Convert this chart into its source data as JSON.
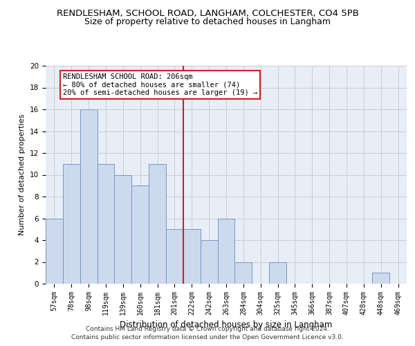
{
  "title": "RENDLESHAM, SCHOOL ROAD, LANGHAM, COLCHESTER, CO4 5PB",
  "subtitle": "Size of property relative to detached houses in Langham",
  "xlabel": "Distribution of detached houses by size in Langham",
  "ylabel": "Number of detached properties",
  "categories": [
    "57sqm",
    "78sqm",
    "98sqm",
    "119sqm",
    "139sqm",
    "160sqm",
    "181sqm",
    "201sqm",
    "222sqm",
    "242sqm",
    "263sqm",
    "284sqm",
    "304sqm",
    "325sqm",
    "345sqm",
    "366sqm",
    "387sqm",
    "407sqm",
    "428sqm",
    "448sqm",
    "469sqm"
  ],
  "values": [
    6,
    11,
    16,
    11,
    10,
    9,
    11,
    5,
    5,
    4,
    6,
    2,
    0,
    2,
    0,
    0,
    0,
    0,
    0,
    1,
    0
  ],
  "bar_color": "#cdd9ec",
  "bar_edge_color": "#7399c6",
  "vline_x_index": 7,
  "vline_color": "#cc2222",
  "annotation_line1": "RENDLESHAM SCHOOL ROAD: 206sqm",
  "annotation_line2": "← 80% of detached houses are smaller (74)",
  "annotation_line3": "20% of semi-detached houses are larger (19) →",
  "annotation_box_color": "#ffffff",
  "annotation_box_edge": "#cc2222",
  "ylim": [
    0,
    20
  ],
  "yticks": [
    0,
    2,
    4,
    6,
    8,
    10,
    12,
    14,
    16,
    18,
    20
  ],
  "grid_color": "#cccccc",
  "background_color": "#e8eef7",
  "footer_text": "Contains HM Land Registry data © Crown copyright and database right 2024.\nContains public sector information licensed under the Open Government Licence v3.0.",
  "title_fontsize": 9.5,
  "subtitle_fontsize": 9,
  "tick_fontsize": 7,
  "ylabel_fontsize": 8,
  "xlabel_fontsize": 8.5,
  "annotation_fontsize": 7.5,
  "footer_fontsize": 6.5
}
